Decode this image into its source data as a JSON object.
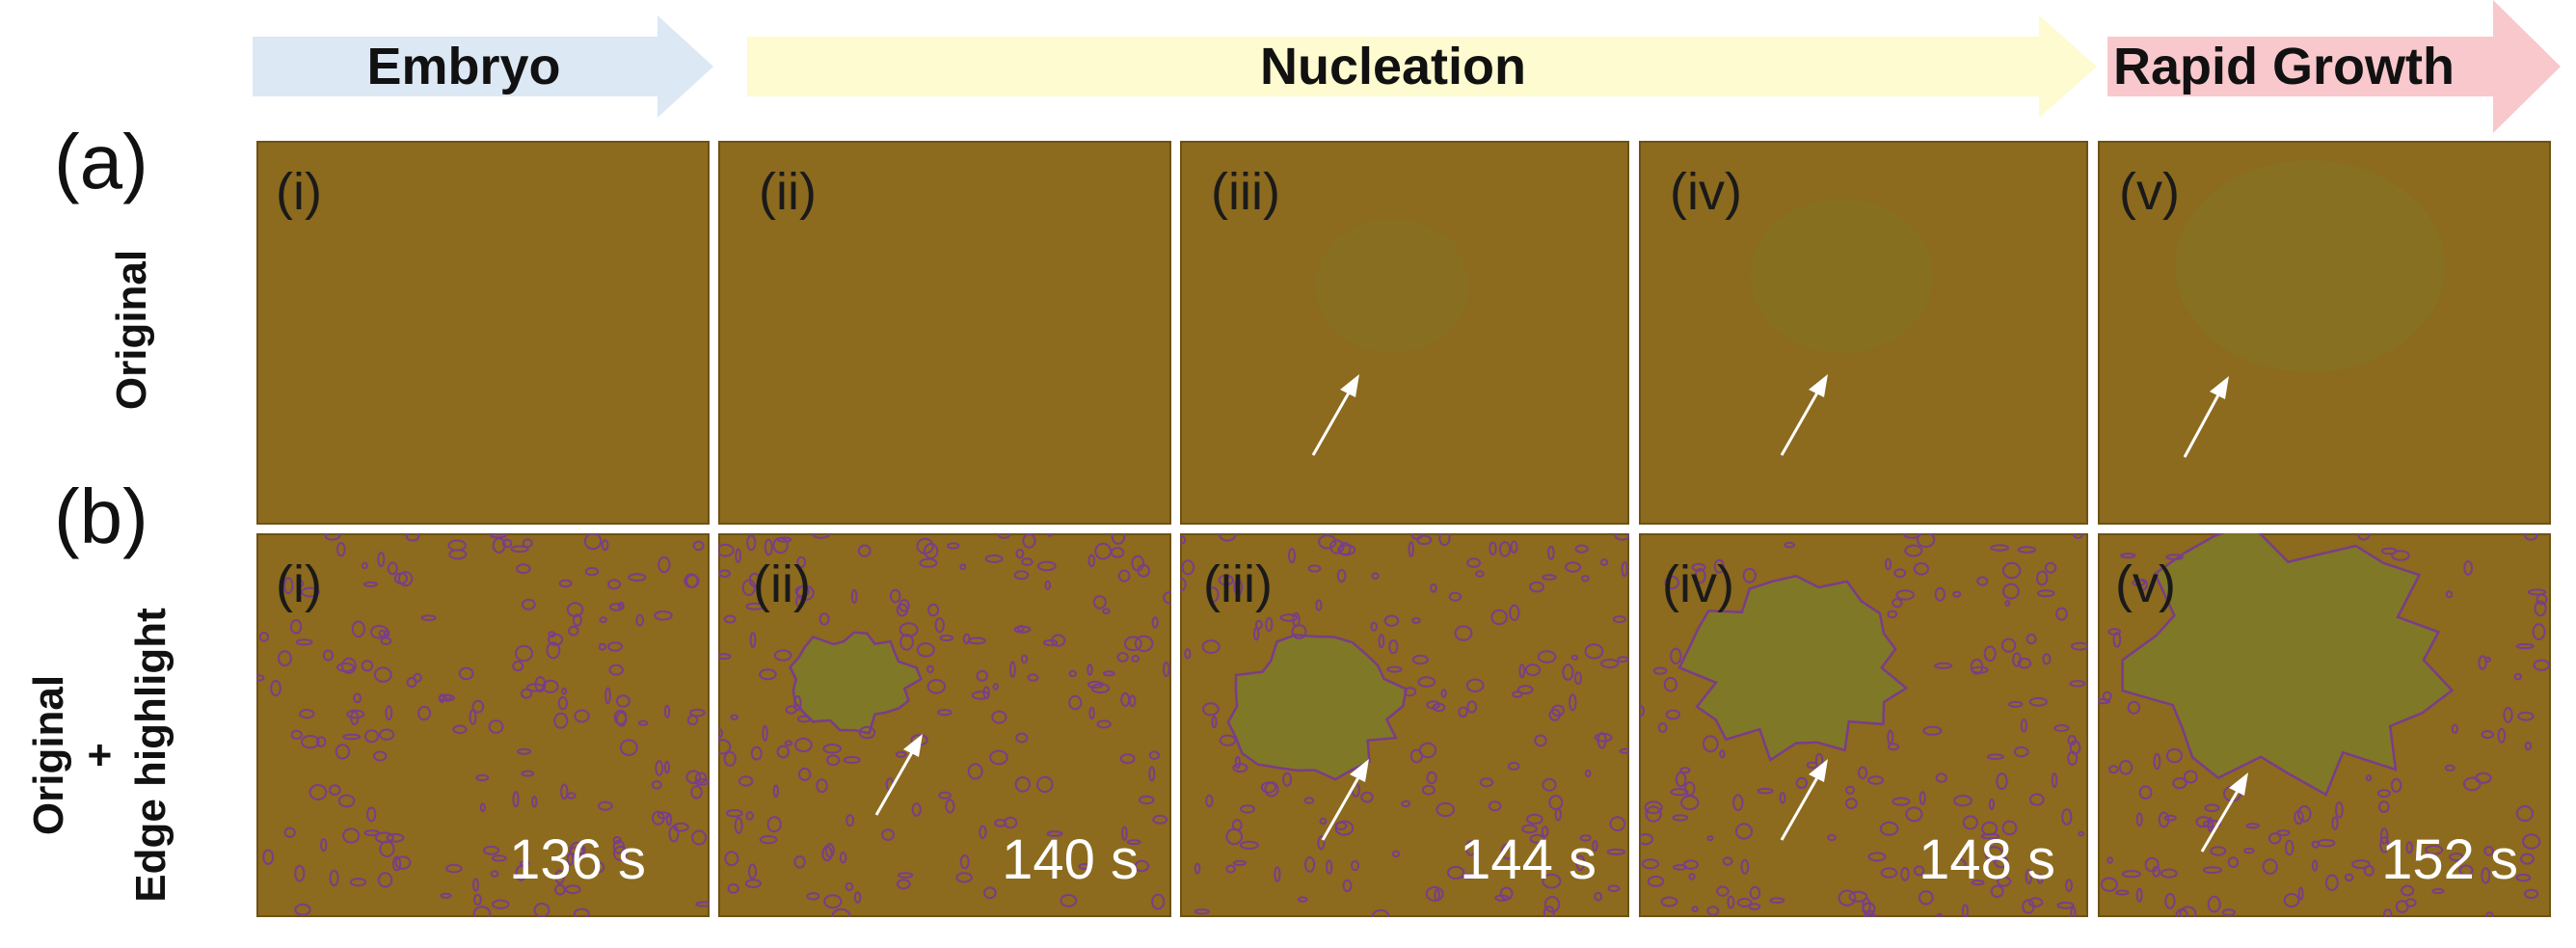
{
  "stages": [
    {
      "label": "Embryo",
      "color": "#dce8f3"
    },
    {
      "label": "Nucleation",
      "color": "#fdfbcf"
    },
    {
      "label": "Rapid Growth",
      "color": "#f8c8cc"
    }
  ],
  "rows": [
    {
      "letter": "(a)",
      "side_label": "Original"
    },
    {
      "letter": "(b)",
      "side_label_line1": "Original",
      "side_label_line2": "+",
      "side_label_line3": "Edge highlight"
    }
  ],
  "panels": [
    {
      "id": "(i)",
      "time": "136 s",
      "nucleus": 0.0,
      "has_arrow": false
    },
    {
      "id": "(ii)",
      "time": "140 s",
      "nucleus": 0.25,
      "has_arrow": true
    },
    {
      "id": "(iii)",
      "time": "144 s",
      "nucleus": 0.45,
      "has_arrow": true
    },
    {
      "id": "(iv)",
      "time": "148 s",
      "nucleus": 0.6,
      "has_arrow": true
    },
    {
      "id": "(v)",
      "time": "152 s",
      "nucleus": 1.0,
      "has_arrow": true
    }
  ],
  "colors": {
    "panel_background": "#8c6a1e",
    "edge_highlight": "#7a3d8a",
    "nucleus_tint": "#7d7a28",
    "arrow": "#ffffff"
  }
}
